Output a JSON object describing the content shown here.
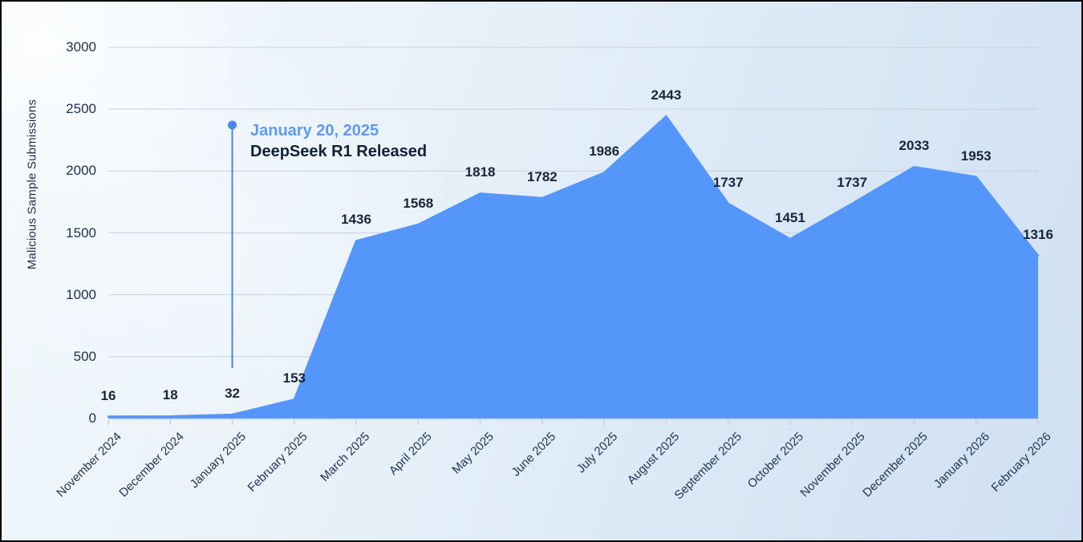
{
  "chart_data": {
    "type": "area",
    "title": "",
    "xlabel": "",
    "ylabel": "Malicious Sample Submissions",
    "categories": [
      "November 2024",
      "December 2024",
      "January 2025",
      "February 2025",
      "March 2025",
      "April 2025",
      "May 2025",
      "June 2025",
      "July 2025",
      "August 2025",
      "September 2025",
      "October 2025",
      "November 2025",
      "December 2025",
      "January 2026",
      "February 2026"
    ],
    "values": [
      16,
      18,
      32,
      153,
      1436,
      1568,
      1818,
      1782,
      1986,
      2443,
      1737,
      1451,
      1737,
      2033,
      1953,
      1316
    ],
    "series": [
      {
        "name": "Malicious Sample Submissions",
        "values": [
          16,
          18,
          32,
          153,
          1436,
          1568,
          1818,
          1782,
          1986,
          2443,
          1737,
          1451,
          1737,
          2033,
          1953,
          1316
        ]
      }
    ],
    "ylim": [
      0,
      3000
    ],
    "y_ticks": [
      0,
      500,
      1000,
      1500,
      2000,
      2500,
      3000
    ],
    "grid": true,
    "legend": false,
    "data_labels_shown": true,
    "annotation": {
      "date_label": "January 20, 2025",
      "event_label": "DeepSeek R1 Released",
      "category": "January 2025"
    },
    "colors": {
      "area_fill": "#5596fa",
      "annotation_line": "#4e87e9",
      "annotation_accent": "#5e9bf2",
      "event_text": "#10203a",
      "tick_text": "#20304e",
      "data_label_text": "#1a2439",
      "gridline": "#c9d0db"
    }
  }
}
